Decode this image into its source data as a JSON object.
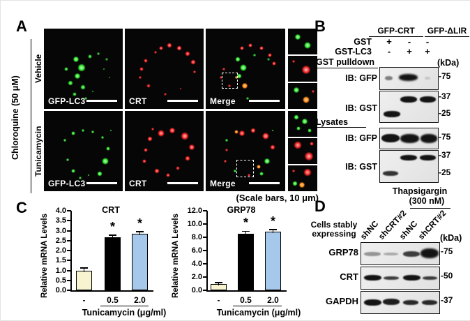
{
  "panelA": {
    "label": "A",
    "side_label": "Chloroquine (50 μM)",
    "rows": [
      {
        "label": "Vehicle"
      },
      {
        "label": "Tunicamycin"
      }
    ],
    "image_labels": [
      "GFP-LC3",
      "CRT",
      "Merge"
    ],
    "scale_note": "(Scale bars, 10 μm)"
  },
  "panelB": {
    "label": "B",
    "groups": [
      "GFP-CRT",
      "GFP-ΔLIR"
    ],
    "condition_rows": [
      {
        "label": "GST",
        "values": [
          "+",
          "-",
          "-"
        ]
      },
      {
        "label": "GST-LC3",
        "values": [
          "-",
          "+",
          "+"
        ]
      }
    ],
    "kda_label": "(kDa)",
    "sections": [
      {
        "title": "GST pulldown",
        "blots": [
          {
            "label": "IB: GFP",
            "markers": [
              "-75"
            ]
          },
          {
            "label": "IB: GST",
            "markers": [
              "-37",
              "-25"
            ]
          }
        ]
      },
      {
        "title": "Lysates",
        "blots": [
          {
            "label": "IB: GFP",
            "markers": [
              "-75"
            ]
          },
          {
            "label": "IB: GST",
            "markers": [
              "-37",
              "-25"
            ]
          }
        ]
      }
    ]
  },
  "panelC": {
    "label": "C"
  },
  "panelD": {
    "label": "D",
    "treatment_line1": "Thapsigargin",
    "treatment_line2": "(300 nM)",
    "cells_label_line1": "Cells stably",
    "cells_label_line2": "expressing",
    "lanes": [
      "shNC",
      "shCRT#2",
      "shNC",
      "shCRT#2"
    ],
    "kda_label": "(kDa)",
    "blots": [
      {
        "label": "GRP78",
        "marker": "-75"
      },
      {
        "label": "CRT",
        "marker": "-50"
      },
      {
        "label": "GAPDH",
        "marker": "-37"
      }
    ]
  },
  "chart_data": [
    {
      "type": "bar",
      "title": "CRT",
      "ylabel": "Relative mRNA Levels",
      "xlabel": "Tunicamycin (μg/ml)",
      "categories": [
        "-",
        "0.5",
        "2.0"
      ],
      "values": [
        1.0,
        2.65,
        2.85
      ],
      "errors": [
        0.08,
        0.1,
        0.08
      ],
      "significance": [
        "",
        "*",
        "*"
      ],
      "ylim": [
        0,
        4.0
      ],
      "ytick_step": 0.5,
      "bar_colors": [
        "#f7f4cf",
        "#000000",
        "#a6c8ea"
      ],
      "grid": false,
      "legend": "none"
    },
    {
      "type": "bar",
      "title": "GRP78",
      "ylabel": "Relative mRNA Levels",
      "xlabel": "Tunicamycin (μg/ml)",
      "categories": [
        "-",
        "0.5",
        "2.0"
      ],
      "values": [
        1.0,
        8.5,
        8.8
      ],
      "errors": [
        0.1,
        0.3,
        0.25
      ],
      "significance": [
        "",
        "*",
        "*"
      ],
      "ylim": [
        0,
        12.0
      ],
      "ytick_step": 2.0,
      "bar_colors": [
        "#f7f4cf",
        "#000000",
        "#a6c8ea"
      ],
      "grid": false,
      "legend": "none"
    }
  ]
}
